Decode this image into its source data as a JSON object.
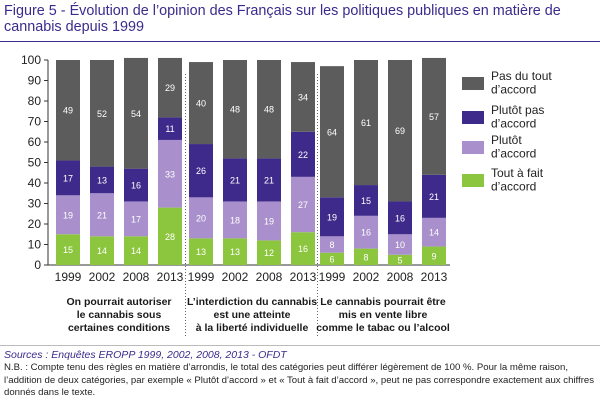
{
  "figure": {
    "title": "Figure 5 - Évolution de l’opinion des Français sur les politiques publiques en matière de cannabis depuis 1999",
    "source": "Sources : Enquêtes EROPP 1999, 2002, 2008, 2013 - OFDT",
    "note": "N.B. : Compte tenu des règles en matière d’arrondis, le total des catégories peut différer légèrement de 100 %. Pour la même raison, l’addition de deux catégories, par exemple « Plutôt d’accord » et « Tout à fait d’accord », peut ne pas correspondre exactement aux chiffres donnés dans le texte."
  },
  "chart_data": {
    "type": "bar",
    "stacked": true,
    "ylim": [
      0,
      100
    ],
    "yticks": [
      0,
      10,
      20,
      30,
      40,
      50,
      60,
      70,
      80,
      90,
      100
    ],
    "years": [
      "1999",
      "2002",
      "2008",
      "2013"
    ],
    "groups": [
      {
        "label": "On pourrait autoriser le cannabis sous certaines conditions",
        "label_lines": [
          "On pourrait autoriser",
          "le cannabis sous",
          "certaines conditions"
        ],
        "bars": [
          {
            "year": "1999",
            "tout_a_fait": 15,
            "plutot": 19,
            "plutot_pas": 17,
            "pas_du_tout": 49
          },
          {
            "year": "2002",
            "tout_a_fait": 14,
            "plutot": 21,
            "plutot_pas": 13,
            "pas_du_tout": 52
          },
          {
            "year": "2008",
            "tout_a_fait": 14,
            "plutot": 17,
            "plutot_pas": 16,
            "pas_du_tout": 54
          },
          {
            "year": "2013",
            "tout_a_fait": 28,
            "plutot": 33,
            "plutot_pas": 11,
            "pas_du_tout": 29
          }
        ]
      },
      {
        "label": "L’interdiction du cannabis est une atteinte à la liberté individuelle",
        "label_lines": [
          "L’interdiction du cannabis",
          "est une atteinte",
          "à la liberté individuelle"
        ],
        "bars": [
          {
            "year": "1999",
            "tout_a_fait": 13,
            "plutot": 20,
            "plutot_pas": 26,
            "pas_du_tout": 40
          },
          {
            "year": "2002",
            "tout_a_fait": 13,
            "plutot": 18,
            "plutot_pas": 21,
            "pas_du_tout": 48
          },
          {
            "year": "2008",
            "tout_a_fait": 12,
            "plutot": 19,
            "plutot_pas": 21,
            "pas_du_tout": 48
          },
          {
            "year": "2013",
            "tout_a_fait": 16,
            "plutot": 27,
            "plutot_pas": 22,
            "pas_du_tout": 34
          }
        ]
      },
      {
        "label": "Le cannabis pourrait être mis en vente libre comme le tabac ou l’alcool",
        "label_lines": [
          "Le cannabis pourrait être",
          "mis en vente libre",
          "comme le tabac ou l’alcool"
        ],
        "bars": [
          {
            "year": "1999",
            "tout_a_fait": 6,
            "plutot": 8,
            "plutot_pas": 19,
            "pas_du_tout": 64
          },
          {
            "year": "2002",
            "tout_a_fait": 8,
            "plutot": 16,
            "plutot_pas": 15,
            "pas_du_tout": 61
          },
          {
            "year": "2008",
            "tout_a_fait": 5,
            "plutot": 10,
            "plutot_pas": 16,
            "pas_du_tout": 69
          },
          {
            "year": "2013",
            "tout_a_fait": 9,
            "plutot": 14,
            "plutot_pas": 21,
            "pas_du_tout": 57
          }
        ]
      }
    ],
    "series": [
      {
        "key": "tout_a_fait",
        "name": "Tout à fait d’accord",
        "legend_lines": [
          "Tout à fait",
          "d’accord"
        ],
        "color": "#8cc63f"
      },
      {
        "key": "plutot",
        "name": "Plutôt d’accord",
        "legend_lines": [
          "Plutôt",
          "d’accord"
        ],
        "color": "#a98fcb"
      },
      {
        "key": "plutot_pas",
        "name": "Plutôt pas d’accord",
        "legend_lines": [
          "Plutôt pas",
          "d’accord"
        ],
        "color": "#3d2a8a"
      },
      {
        "key": "pas_du_tout",
        "name": "Pas du tout d’accord",
        "legend_lines": [
          "Pas du tout",
          "d’accord"
        ],
        "color": "#5c5c5c"
      }
    ],
    "legend_position": "right",
    "grid": false
  }
}
